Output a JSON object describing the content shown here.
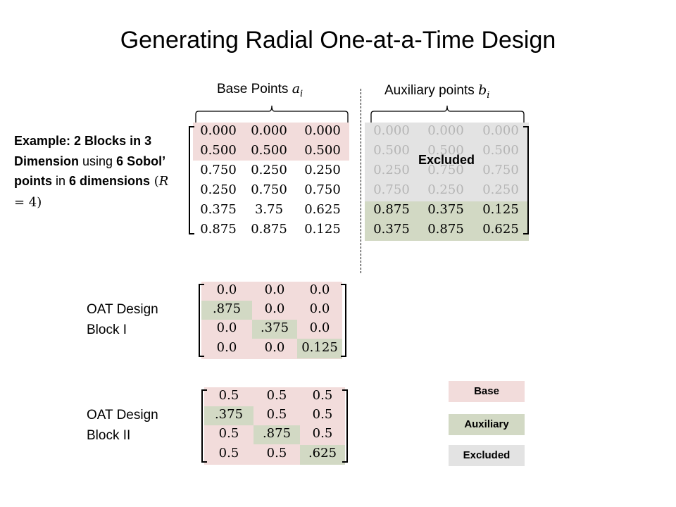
{
  "title": "Generating  Radial  One-at-a-Time  Design",
  "headers": {
    "base": "Base Points",
    "base_sym": "a",
    "base_sub": "i",
    "aux": "Auxiliary points",
    "aux_sym": "b",
    "aux_sub": "i"
  },
  "example": {
    "p1": "Example: 2 Blocks in 3 Dimension",
    "p2": " using ",
    "p3": "6 Sobol’ points",
    "p4": " in ",
    "p5": "6 dimensions",
    "math_open": " (",
    "math_var": "R",
    "math_rest": " = 4)"
  },
  "sobol": {
    "base_rows": [
      [
        "0.000",
        "0.000",
        "0.000"
      ],
      [
        "0.500",
        "0.500",
        "0.500"
      ],
      [
        "0.750",
        "0.250",
        "0.250"
      ],
      [
        "0.250",
        "0.750",
        "0.750"
      ],
      [
        "0.375",
        "3.75",
        "0.625"
      ],
      [
        "0.875",
        "0.875",
        "0.125"
      ]
    ],
    "aux_rows": [
      [
        "0.000",
        "0.000",
        "0.000"
      ],
      [
        "0.500",
        "0.500",
        "0.500"
      ],
      [
        "0.250",
        "0.750",
        "0.750"
      ],
      [
        "0.750",
        "0.250",
        "0.250"
      ],
      [
        "0.875",
        "0.375",
        "0.125"
      ],
      [
        "0.375",
        "0.875",
        "0.625"
      ]
    ],
    "excluded_label": "Excluded"
  },
  "block1": {
    "label1": "OAT Design",
    "label2": "Block I",
    "rows": [
      [
        "0.0",
        "0.0",
        "0.0"
      ],
      [
        ".875",
        "0.0",
        "0.0"
      ],
      [
        "0.0",
        ".375",
        "0.0"
      ],
      [
        "0.0",
        "0.0",
        "0.125"
      ]
    ]
  },
  "block2": {
    "label1": "OAT Design",
    "label2": "Block II",
    "rows": [
      [
        "0.5",
        "0.5",
        "0.5"
      ],
      [
        ".375",
        "0.5",
        "0.5"
      ],
      [
        "0.5",
        ".875",
        "0.5"
      ],
      [
        "0.5",
        "0.5",
        ".625"
      ]
    ]
  },
  "legend": {
    "base": "Base",
    "auxiliary": "Auxiliary",
    "excluded": "Excluded"
  },
  "colors": {
    "base": "#f2dcdb",
    "auxiliary": "#d2d9c4",
    "excluded": "#e3e3e3",
    "faded_text": "#b5b5b5"
  }
}
